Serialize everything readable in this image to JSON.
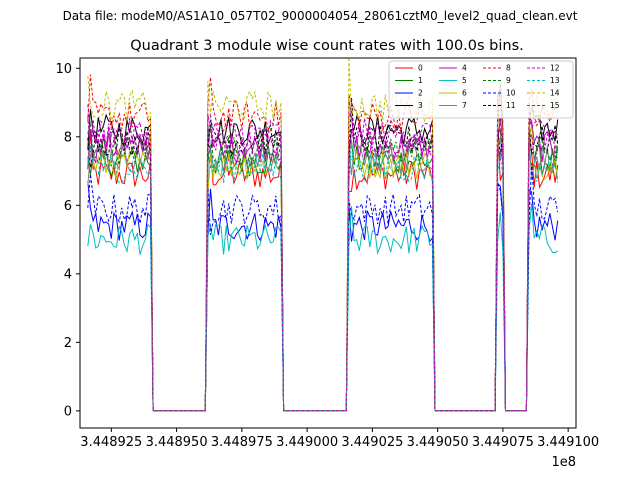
{
  "chart_data": {
    "type": "line",
    "suptitle": "Data file: modeM0/AS1A10_057T02_9000004054_28061cztM0_level2_quad_clean.evt",
    "title": "Quadrant 3 module wise count rates with 100.0s bins.",
    "xlabel": "",
    "ylabel": "",
    "x_offset_label": "1e8",
    "xlim": [
      344891300,
      344910300
    ],
    "ylim": [
      -0.5,
      10.3
    ],
    "x_ticks": [
      344892500,
      344895000,
      344897500,
      344900000,
      344902500,
      344905000,
      344907500,
      344910000
    ],
    "x_tick_labels": [
      "3.448925",
      "3.448950",
      "3.448975",
      "3.449000",
      "3.449025",
      "3.449050",
      "3.449075",
      "3.449100"
    ],
    "y_ticks": [
      0,
      2,
      4,
      6,
      8,
      10
    ],
    "y_tick_labels": [
      "0",
      "2",
      "4",
      "6",
      "8",
      "10"
    ],
    "grid": false,
    "legend_position": "top-right",
    "bin_seconds": 100,
    "segments": [
      {
        "start": 344891600,
        "end": 344894000
      },
      {
        "start": 344896200,
        "end": 344899000
      },
      {
        "start": 344901600,
        "end": 344904800
      },
      {
        "start": 344907300,
        "end": 344907500
      },
      {
        "start": 344908500,
        "end": 344909600
      }
    ],
    "series": [
      {
        "name": "0",
        "level": 6.9,
        "color": "#ff0000",
        "dash": false
      },
      {
        "name": "1",
        "level": 7.3,
        "color": "#008000",
        "dash": false
      },
      {
        "name": "2",
        "level": 5.4,
        "color": "#0000ff",
        "dash": false
      },
      {
        "name": "3",
        "level": 8.2,
        "color": "#000000",
        "dash": false
      },
      {
        "name": "4",
        "level": 7.7,
        "color": "#bf00bf",
        "dash": false
      },
      {
        "name": "5",
        "level": 5.0,
        "color": "#00bfbf",
        "dash": false
      },
      {
        "name": "6",
        "level": 7.2,
        "color": "#bfbf00",
        "dash": false
      },
      {
        "name": "7",
        "level": 7.4,
        "color": "#808080",
        "dash": false
      },
      {
        "name": "8",
        "level": 8.6,
        "color": "#ff0000",
        "dash": true
      },
      {
        "name": "9",
        "level": 7.6,
        "color": "#008000",
        "dash": true
      },
      {
        "name": "10",
        "level": 5.9,
        "color": "#0000ff",
        "dash": true
      },
      {
        "name": "11",
        "level": 7.9,
        "color": "#000000",
        "dash": true
      },
      {
        "name": "12",
        "level": 8.1,
        "color": "#bf00bf",
        "dash": true
      },
      {
        "name": "13",
        "level": 7.1,
        "color": "#00bfbf",
        "dash": true
      },
      {
        "name": "14",
        "level": 8.9,
        "color": "#bfbf00",
        "dash": true
      },
      {
        "name": "15",
        "level": 7.8,
        "color": "#bf00bf",
        "dash": true
      }
    ]
  }
}
